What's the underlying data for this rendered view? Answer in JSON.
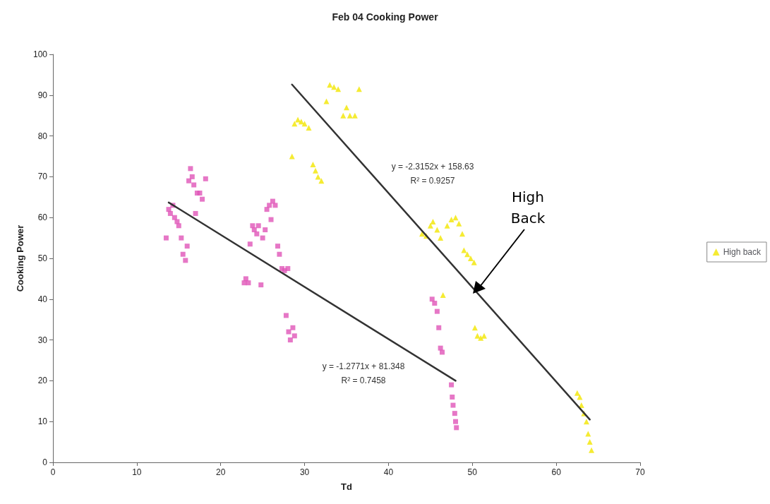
{
  "chart_data": {
    "type": "scatter",
    "title": "Feb 04 Cooking Power",
    "xlabel": "Td",
    "ylabel": "Cooking Power",
    "xlim": [
      0,
      70
    ],
    "xticks": [
      0,
      10,
      20,
      30,
      40,
      50,
      60,
      70
    ],
    "ylim": [
      0,
      100
    ],
    "yticks": [
      0,
      10,
      20,
      30,
      40,
      50,
      60,
      70,
      80,
      90,
      100
    ],
    "grid": false,
    "legend": "right",
    "series": [
      {
        "color": "#e055b8",
        "marker": "square",
        "x": [
          13.5,
          13.8,
          14,
          14.3,
          14.5,
          14.8,
          15,
          15.3,
          15.5,
          15.8,
          16,
          16.2,
          16.4,
          16.6,
          16.8,
          17,
          17.2,
          17.5,
          17.8,
          18.2,
          22.8,
          23,
          23.3,
          23.5,
          23.8,
          24,
          24.3,
          24.5,
          24.8,
          25,
          25.3,
          25.5,
          25.8,
          26,
          26.2,
          26.5,
          26.8,
          27,
          27.3,
          27.6,
          28,
          27.8,
          28.1,
          28.3,
          28.6,
          28.8,
          45.2,
          45.5,
          45.8,
          46,
          46.2,
          46.4,
          47.5,
          47.6,
          47.7,
          47.9,
          48,
          48.1
        ],
        "values": [
          55,
          62,
          61,
          63,
          60,
          59,
          58,
          55,
          51,
          49.5,
          53,
          69,
          72,
          70,
          68,
          61,
          66,
          66,
          64.5,
          69.5,
          44,
          45,
          44,
          53.5,
          58,
          57,
          56,
          58,
          43.5,
          55,
          57,
          62,
          63,
          59.5,
          64,
          63,
          53,
          51,
          47.5,
          47,
          47.5,
          36,
          32,
          30,
          33,
          31,
          40,
          39,
          37,
          33,
          28,
          27,
          19,
          16,
          14,
          12,
          10,
          8.5
        ]
      },
      {
        "name": "High back",
        "color": "#f2e600",
        "marker": "triangle",
        "x": [
          28.5,
          28.8,
          29.2,
          29.6,
          30,
          30.5,
          31,
          31.3,
          31.6,
          32,
          32.6,
          33,
          33.5,
          34,
          34.6,
          35,
          35.4,
          36,
          36.5,
          44,
          44.5,
          45,
          45.3,
          45.8,
          46.2,
          46.5,
          47,
          47.5,
          48,
          48.4,
          48.8,
          49,
          49.4,
          49.8,
          50.2,
          50.3,
          50.6,
          51,
          51.4,
          62.5,
          62.8,
          63,
          63.3,
          63.6,
          63.8,
          64,
          64.2
        ],
        "values": [
          75,
          83,
          84,
          83.5,
          83,
          82,
          73,
          71.5,
          70,
          69,
          88.5,
          92.5,
          92,
          91.5,
          85,
          87,
          85,
          85,
          91.5,
          56,
          55.5,
          58,
          59,
          57,
          55,
          41,
          58,
          59.5,
          60,
          58.5,
          56,
          52,
          51,
          50,
          49,
          33,
          31,
          30.5,
          31,
          17,
          16,
          14,
          12,
          10,
          7,
          5,
          3
        ]
      },
      {
        "type": "line",
        "color": "#333333",
        "marker": "none",
        "x": [
          13.8,
          48
        ],
        "values": [
          63.7,
          20.0
        ]
      },
      {
        "type": "line",
        "color": "#333333",
        "marker": "none",
        "x": [
          28.5,
          64
        ],
        "values": [
          92.6,
          10.5
        ]
      }
    ],
    "annotations": [
      "y = -2.3152x + 158.63",
      "R² = 0.9257",
      "y = -1.2771x + 81.348",
      "R² = 0.7458",
      "High\nBack"
    ]
  }
}
